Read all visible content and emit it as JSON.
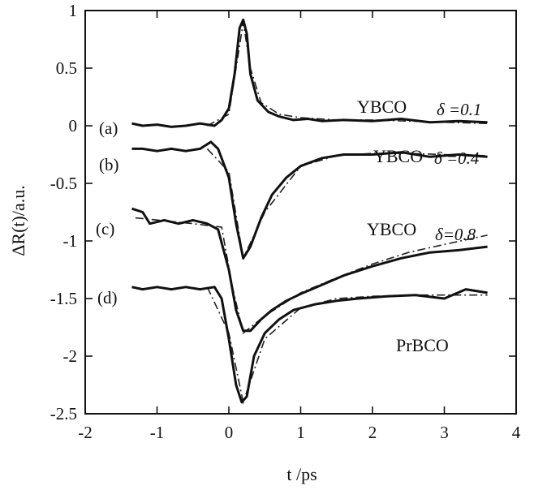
{
  "chart_data": {
    "type": "line",
    "title": "",
    "xlabel": "t /ps",
    "ylabel": "ΔR(t)/a.u.",
    "xlim": [
      -2,
      4
    ],
    "ylim": [
      -2.5,
      1
    ],
    "x_ticks": [
      "-2",
      "-1",
      "0",
      "1",
      "2",
      "3",
      "4"
    ],
    "y_ticks": [
      "1",
      "0.5",
      "0",
      "-0.5",
      "-1",
      "-1.5",
      "-2",
      "-2.5"
    ],
    "grid": false,
    "series": [
      {
        "curve": "(a)",
        "name": "YBCO",
        "delta": "δ =0.1",
        "measured": [
          [
            -1.35,
            0.02
          ],
          [
            -1.2,
            0.0
          ],
          [
            -1.0,
            0.01
          ],
          [
            -0.8,
            -0.01
          ],
          [
            -0.6,
            0.0
          ],
          [
            -0.4,
            0.02
          ],
          [
            -0.2,
            0.0
          ],
          [
            -0.1,
            0.05
          ],
          [
            0.0,
            0.15
          ],
          [
            0.08,
            0.45
          ],
          [
            0.15,
            0.85
          ],
          [
            0.2,
            0.92
          ],
          [
            0.25,
            0.8
          ],
          [
            0.3,
            0.45
          ],
          [
            0.4,
            0.22
          ],
          [
            0.55,
            0.12
          ],
          [
            0.7,
            0.08
          ],
          [
            0.9,
            0.05
          ],
          [
            1.1,
            0.06
          ],
          [
            1.3,
            0.04
          ],
          [
            1.6,
            0.05
          ],
          [
            2.0,
            0.04
          ],
          [
            2.4,
            0.06
          ],
          [
            2.8,
            0.03
          ],
          [
            3.2,
            0.04
          ],
          [
            3.6,
            0.03
          ]
        ],
        "fit": [
          [
            -0.3,
            0.0
          ],
          [
            0.0,
            0.1
          ],
          [
            0.1,
            0.5
          ],
          [
            0.2,
            0.9
          ],
          [
            0.3,
            0.5
          ],
          [
            0.45,
            0.2
          ],
          [
            0.7,
            0.1
          ],
          [
            1.0,
            0.07
          ],
          [
            1.5,
            0.05
          ],
          [
            2.0,
            0.05
          ],
          [
            2.5,
            0.04
          ],
          [
            3.0,
            0.03
          ],
          [
            3.6,
            0.02
          ]
        ]
      },
      {
        "curve": "(b)",
        "name": "YBCO",
        "delta": "δ =0.4",
        "measured": [
          [
            -1.35,
            -0.2
          ],
          [
            -1.2,
            -0.2
          ],
          [
            -1.0,
            -0.22
          ],
          [
            -0.8,
            -0.2
          ],
          [
            -0.6,
            -0.22
          ],
          [
            -0.4,
            -0.2
          ],
          [
            -0.25,
            -0.14
          ],
          [
            -0.15,
            -0.2
          ],
          [
            0.0,
            -0.45
          ],
          [
            0.1,
            -0.85
          ],
          [
            0.2,
            -1.15
          ],
          [
            0.3,
            -1.05
          ],
          [
            0.45,
            -0.8
          ],
          [
            0.6,
            -0.6
          ],
          [
            0.8,
            -0.45
          ],
          [
            1.0,
            -0.35
          ],
          [
            1.3,
            -0.28
          ],
          [
            1.6,
            -0.25
          ],
          [
            2.0,
            -0.25
          ],
          [
            2.4,
            -0.23
          ],
          [
            2.8,
            -0.27
          ],
          [
            3.2,
            -0.25
          ],
          [
            3.6,
            -0.27
          ]
        ],
        "fit": [
          [
            -0.3,
            -0.2
          ],
          [
            0.0,
            -0.4
          ],
          [
            0.2,
            -1.15
          ],
          [
            0.5,
            -0.75
          ],
          [
            1.0,
            -0.35
          ],
          [
            1.5,
            -0.26
          ],
          [
            2.0,
            -0.24
          ],
          [
            2.5,
            -0.24
          ],
          [
            3.0,
            -0.25
          ],
          [
            3.6,
            -0.26
          ]
        ]
      },
      {
        "curve": "(c)",
        "name": "YBCO",
        "delta": "δ=0.8",
        "measured": [
          [
            -1.35,
            -0.72
          ],
          [
            -1.2,
            -0.75
          ],
          [
            -1.1,
            -0.85
          ],
          [
            -0.9,
            -0.82
          ],
          [
            -0.7,
            -0.85
          ],
          [
            -0.5,
            -0.82
          ],
          [
            -0.3,
            -0.85
          ],
          [
            -0.15,
            -0.9
          ],
          [
            0.0,
            -1.25
          ],
          [
            0.1,
            -1.6
          ],
          [
            0.2,
            -1.78
          ],
          [
            0.3,
            -1.78
          ],
          [
            0.45,
            -1.68
          ],
          [
            0.6,
            -1.6
          ],
          [
            0.8,
            -1.52
          ],
          [
            1.0,
            -1.46
          ],
          [
            1.3,
            -1.38
          ],
          [
            1.6,
            -1.3
          ],
          [
            2.0,
            -1.22
          ],
          [
            2.4,
            -1.15
          ],
          [
            2.8,
            -1.1
          ],
          [
            3.2,
            -1.08
          ],
          [
            3.6,
            -1.05
          ]
        ],
        "fit": [
          [
            -1.3,
            -0.8
          ],
          [
            -0.5,
            -0.85
          ],
          [
            -0.1,
            -0.88
          ],
          [
            0.05,
            -1.4
          ],
          [
            0.2,
            -1.8
          ],
          [
            0.5,
            -1.65
          ],
          [
            1.0,
            -1.45
          ],
          [
            1.5,
            -1.32
          ],
          [
            2.0,
            -1.2
          ],
          [
            2.5,
            -1.1
          ],
          [
            3.0,
            -1.03
          ],
          [
            3.6,
            -0.95
          ]
        ]
      },
      {
        "curve": "(d)",
        "name": "PrBCO",
        "delta": "",
        "measured": [
          [
            -1.35,
            -1.4
          ],
          [
            -1.2,
            -1.42
          ],
          [
            -1.0,
            -1.4
          ],
          [
            -0.8,
            -1.42
          ],
          [
            -0.6,
            -1.4
          ],
          [
            -0.4,
            -1.42
          ],
          [
            -0.2,
            -1.4
          ],
          [
            -0.1,
            -1.5
          ],
          [
            0.0,
            -1.85
          ],
          [
            0.1,
            -2.25
          ],
          [
            0.18,
            -2.4
          ],
          [
            0.25,
            -2.35
          ],
          [
            0.35,
            -2.0
          ],
          [
            0.5,
            -1.8
          ],
          [
            0.7,
            -1.68
          ],
          [
            0.9,
            -1.6
          ],
          [
            1.2,
            -1.55
          ],
          [
            1.5,
            -1.52
          ],
          [
            1.8,
            -1.5
          ],
          [
            2.2,
            -1.48
          ],
          [
            2.6,
            -1.47
          ],
          [
            3.0,
            -1.5
          ],
          [
            3.3,
            -1.42
          ],
          [
            3.6,
            -1.45
          ]
        ],
        "fit": [
          [
            -0.3,
            -1.4
          ],
          [
            0.0,
            -1.8
          ],
          [
            0.2,
            -2.4
          ],
          [
            0.5,
            -1.85
          ],
          [
            1.0,
            -1.58
          ],
          [
            1.5,
            -1.5
          ],
          [
            2.0,
            -1.48
          ],
          [
            2.5,
            -1.47
          ],
          [
            3.0,
            -1.47
          ],
          [
            3.6,
            -1.47
          ]
        ]
      }
    ]
  }
}
